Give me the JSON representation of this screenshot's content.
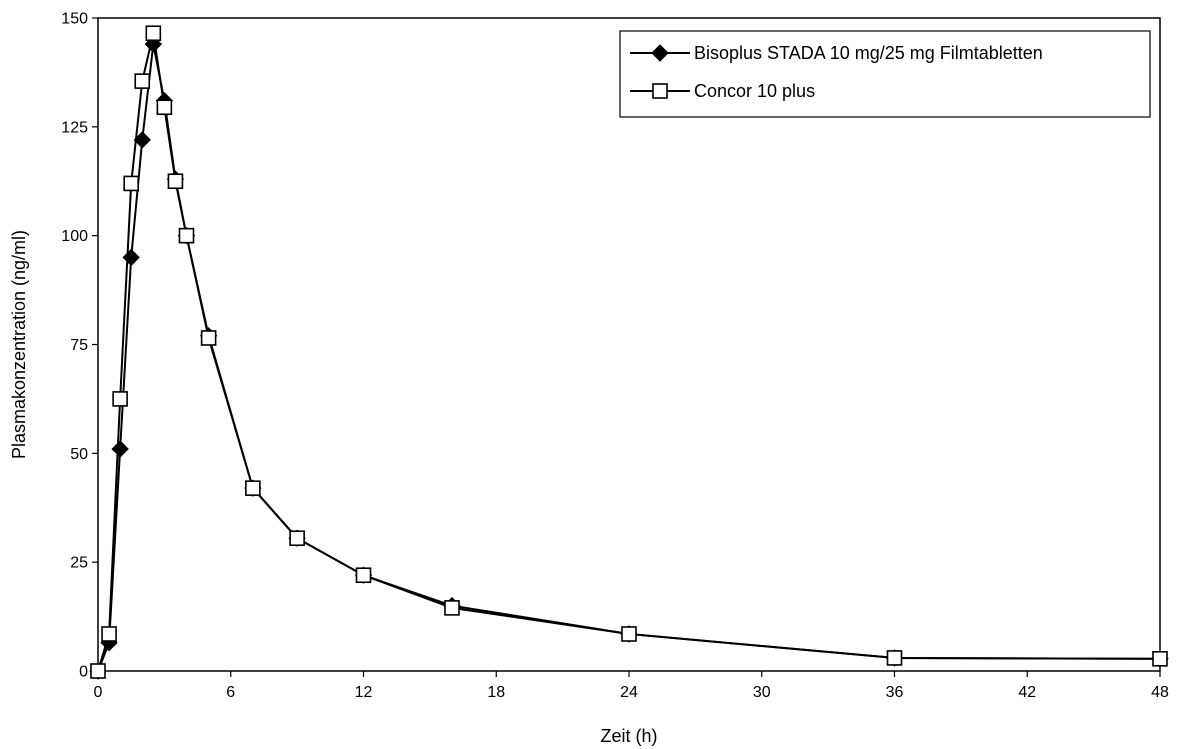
{
  "chart_data": {
    "type": "line",
    "xlabel": "Zeit (h)",
    "ylabel": "Plasmakonzentration (ng/ml)",
    "xlim": [
      0,
      48
    ],
    "ylim": [
      0,
      150
    ],
    "x_ticks": [
      "0",
      "6",
      "12",
      "18",
      "24",
      "30",
      "36",
      "42",
      "48"
    ],
    "y_ticks": [
      "0",
      "25",
      "50",
      "75",
      "100",
      "125",
      "150"
    ],
    "grid": false,
    "legend_position": "top-right",
    "series": [
      {
        "name": "Bisoplus STADA 10 mg/25 mg Filmtabletten",
        "marker": "diamond-filled",
        "color": "#000000",
        "x": [
          0,
          0.5,
          1,
          1.5,
          2,
          2.5,
          3,
          3.5,
          4,
          5,
          7,
          9,
          12,
          16,
          24,
          36,
          48
        ],
        "y": [
          0,
          6.5,
          51,
          95,
          122,
          144,
          131,
          113,
          100,
          77,
          42,
          30.5,
          22,
          15,
          8.5,
          3,
          2.8
        ]
      },
      {
        "name": "Concor 10 plus",
        "marker": "square-open",
        "color": "#000000",
        "x": [
          0,
          0.5,
          1,
          1.5,
          2,
          2.5,
          3,
          3.5,
          4,
          5,
          7,
          9,
          12,
          16,
          24,
          36,
          48
        ],
        "y": [
          0,
          8.5,
          62.5,
          112,
          135.5,
          146.5,
          129.5,
          112.5,
          100,
          76.5,
          42,
          30.5,
          22,
          14.5,
          8.5,
          3,
          2.8
        ]
      }
    ]
  }
}
